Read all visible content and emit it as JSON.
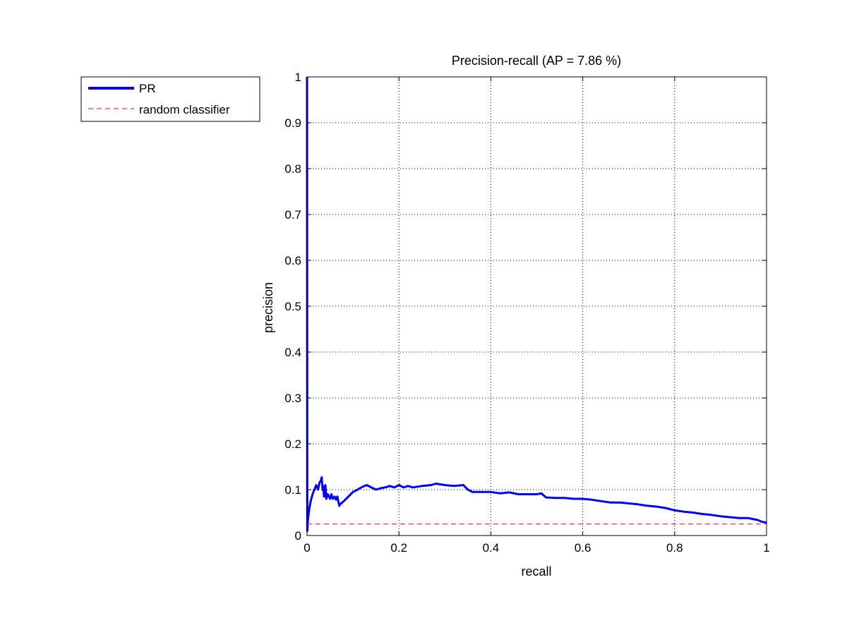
{
  "chart_data": {
    "type": "line",
    "title": "Precision-recall (AP = 7.86 %)",
    "xlabel": "recall",
    "ylabel": "precision",
    "xlim": [
      0,
      1
    ],
    "ylim": [
      0,
      1
    ],
    "xticks": [
      0,
      0.2,
      0.4,
      0.6,
      0.8,
      1
    ],
    "xtick_labels": [
      "0",
      "0.2",
      "0.4",
      "0.6",
      "0.8",
      "1"
    ],
    "yticks": [
      0,
      0.1,
      0.2,
      0.3,
      0.4,
      0.5,
      0.6,
      0.7,
      0.8,
      0.9,
      1
    ],
    "ytick_labels": [
      "0",
      "0.1",
      "0.2",
      "0.3",
      "0.4",
      "0.5",
      "0.6",
      "0.7",
      "0.8",
      "0.9",
      "1"
    ],
    "grid": true,
    "legend_position": "outside-top-left",
    "series": [
      {
        "name": "PR",
        "color": "#0000ff",
        "style": "solid",
        "x": [
          0,
          0.0005,
          0.001,
          0.002,
          0.003,
          0.005,
          0.008,
          0.012,
          0.016,
          0.02,
          0.024,
          0.027,
          0.03,
          0.032,
          0.034,
          0.035,
          0.037,
          0.04,
          0.042,
          0.045,
          0.048,
          0.05,
          0.053,
          0.056,
          0.06,
          0.063,
          0.066,
          0.07,
          0.074,
          0.08,
          0.09,
          0.1,
          0.11,
          0.12,
          0.13,
          0.14,
          0.15,
          0.16,
          0.17,
          0.18,
          0.19,
          0.2,
          0.21,
          0.22,
          0.23,
          0.25,
          0.27,
          0.28,
          0.3,
          0.32,
          0.34,
          0.35,
          0.36,
          0.38,
          0.4,
          0.42,
          0.44,
          0.46,
          0.48,
          0.5,
          0.51,
          0.52,
          0.54,
          0.56,
          0.58,
          0.6,
          0.62,
          0.64,
          0.66,
          0.68,
          0.7,
          0.72,
          0.74,
          0.76,
          0.78,
          0.8,
          0.82,
          0.84,
          0.86,
          0.88,
          0.9,
          0.92,
          0.94,
          0.96,
          0.97,
          0.98,
          0.99,
          1.0
        ],
        "y": [
          1.0,
          0.01,
          0.02,
          0.035,
          0.045,
          0.06,
          0.075,
          0.09,
          0.1,
          0.11,
          0.1,
          0.115,
          0.12,
          0.127,
          0.1,
          0.108,
          0.085,
          0.11,
          0.08,
          0.09,
          0.085,
          0.08,
          0.09,
          0.08,
          0.085,
          0.078,
          0.085,
          0.065,
          0.07,
          0.075,
          0.085,
          0.095,
          0.1,
          0.106,
          0.11,
          0.105,
          0.1,
          0.103,
          0.105,
          0.108,
          0.105,
          0.11,
          0.105,
          0.108,
          0.105,
          0.108,
          0.11,
          0.113,
          0.11,
          0.108,
          0.11,
          0.1,
          0.095,
          0.095,
          0.095,
          0.092,
          0.094,
          0.09,
          0.09,
          0.09,
          0.092,
          0.083,
          0.082,
          0.082,
          0.08,
          0.08,
          0.078,
          0.075,
          0.072,
          0.072,
          0.07,
          0.068,
          0.065,
          0.063,
          0.06,
          0.055,
          0.052,
          0.05,
          0.047,
          0.045,
          0.042,
          0.04,
          0.038,
          0.038,
          0.036,
          0.034,
          0.03,
          0.028
        ]
      },
      {
        "name": "random classifier",
        "color": "#ff0000",
        "style": "dashed",
        "x": [
          0,
          1
        ],
        "y": [
          0.025,
          0.025
        ]
      }
    ]
  }
}
